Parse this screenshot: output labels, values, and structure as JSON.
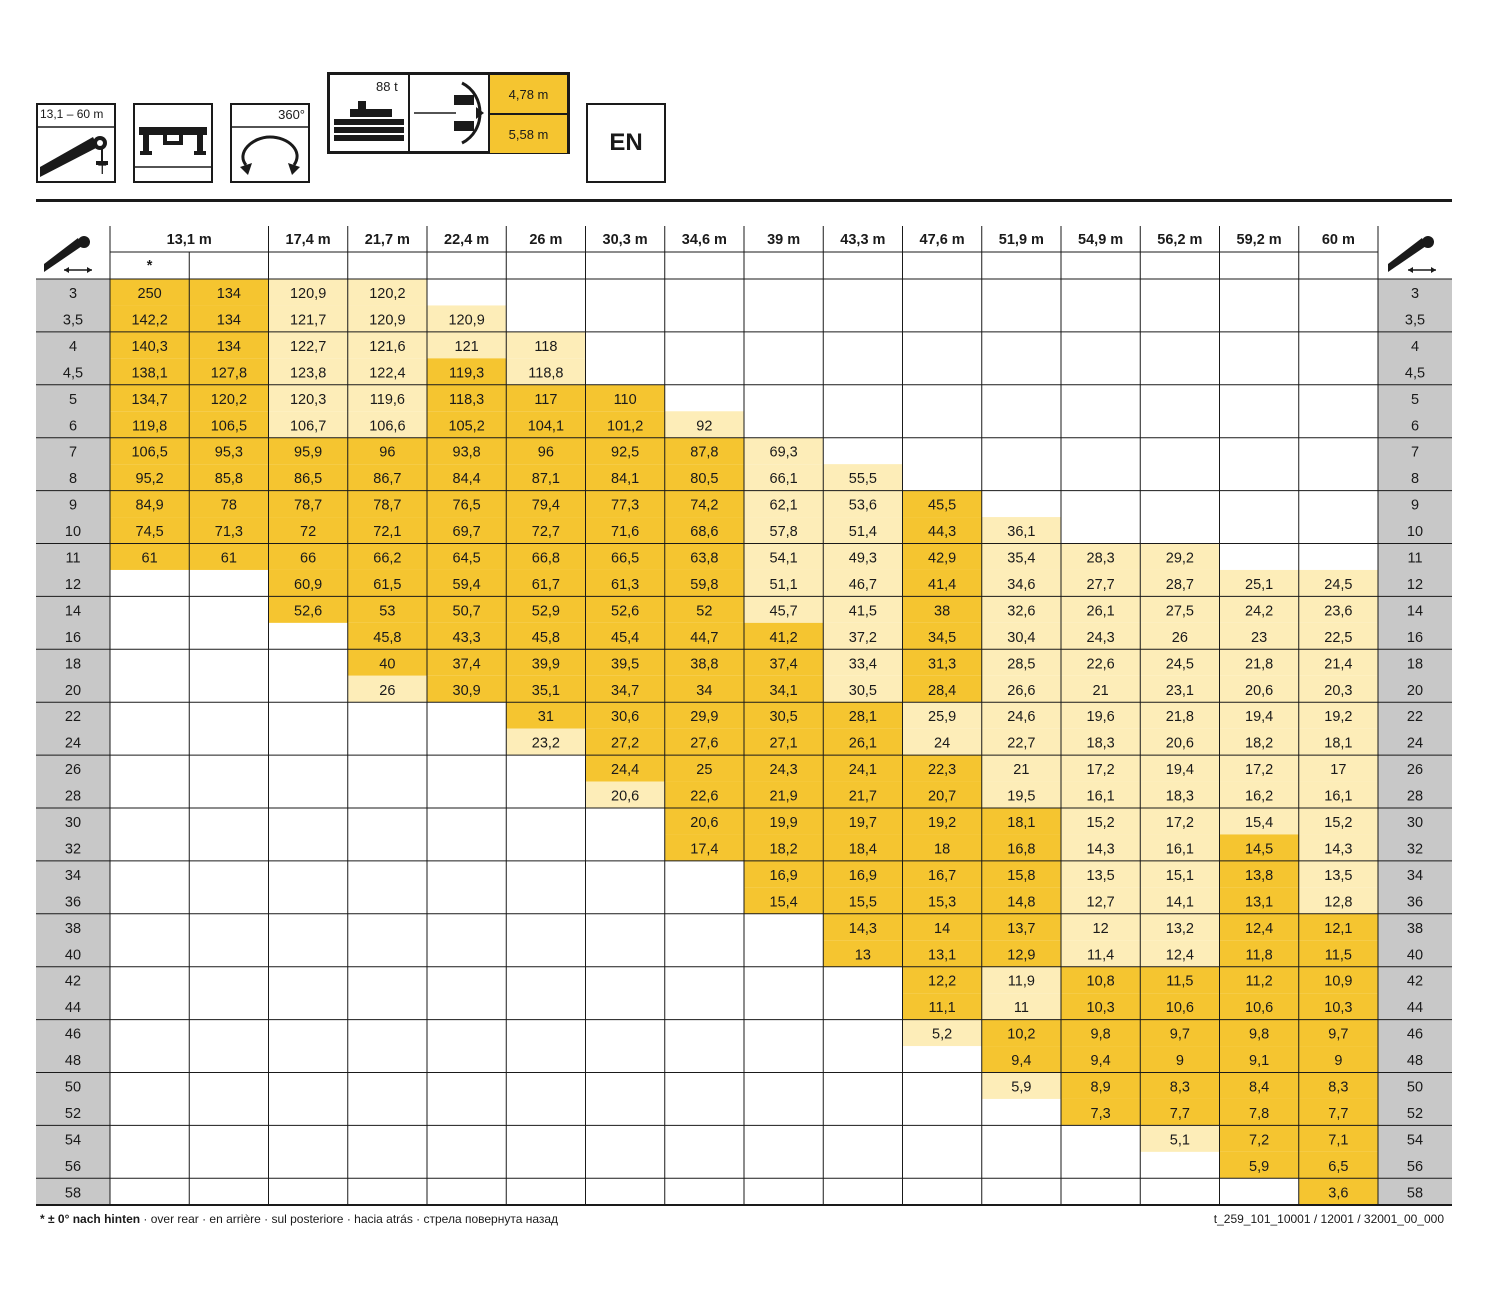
{
  "header": {
    "boom_range": "13,1 – 60 m",
    "boom_symbol": "T",
    "slew_angle": "360°",
    "counterweight": "88 t",
    "outrigger_spans": [
      "4,78 m",
      "5,58 m"
    ],
    "language": "EN"
  },
  "footnote": {
    "bold": "* ± 0° nach hinten",
    "text": " · over rear · en arrière · sul posteriore · hacia atrás · стрела повернута назад"
  },
  "doc_ref": "t_259_101_10001 / 12001 / 32001_00_000",
  "colors": {
    "dark": "#f5c530",
    "light": "#fdedb8",
    "grey": "#c8c8c8",
    "line": "#1a1a1a"
  },
  "chart_data": {
    "type": "table",
    "columns": [
      {
        "head": "13,1 m",
        "sub": "*"
      },
      {
        "head": "",
        "sub": ""
      },
      {
        "head": "17,4 m",
        "sub": ""
      },
      {
        "head": "21,7 m",
        "sub": ""
      },
      {
        "head": "22,4 m",
        "sub": ""
      },
      {
        "head": "26 m",
        "sub": ""
      },
      {
        "head": "30,3 m",
        "sub": ""
      },
      {
        "head": "34,6 m",
        "sub": ""
      },
      {
        "head": "39 m",
        "sub": ""
      },
      {
        "head": "43,3 m",
        "sub": ""
      },
      {
        "head": "47,6 m",
        "sub": ""
      },
      {
        "head": "51,9 m",
        "sub": ""
      },
      {
        "head": "54,9 m",
        "sub": ""
      },
      {
        "head": "56,2 m",
        "sub": ""
      },
      {
        "head": "59,2 m",
        "sub": ""
      },
      {
        "head": "60 m",
        "sub": ""
      }
    ],
    "radii": [
      "3",
      "3,5",
      "4",
      "4,5",
      "5",
      "6",
      "7",
      "8",
      "9",
      "10",
      "11",
      "12",
      "14",
      "16",
      "18",
      "20",
      "22",
      "24",
      "26",
      "28",
      "30",
      "32",
      "34",
      "36",
      "38",
      "40",
      "42",
      "44",
      "46",
      "48",
      "50",
      "52",
      "54",
      "56",
      "58"
    ],
    "values": [
      [
        "250",
        "134",
        "120,9",
        "120,2",
        "",
        "",
        "",
        "",
        "",
        "",
        "",
        "",
        "",
        "",
        "",
        ""
      ],
      [
        "142,2",
        "134",
        "121,7",
        "120,9",
        "120,9",
        "",
        "",
        "",
        "",
        "",
        "",
        "",
        "",
        "",
        "",
        ""
      ],
      [
        "140,3",
        "134",
        "122,7",
        "121,6",
        "121",
        "118",
        "",
        "",
        "",
        "",
        "",
        "",
        "",
        "",
        "",
        ""
      ],
      [
        "138,1",
        "127,8",
        "123,8",
        "122,4",
        "119,3",
        "118,8",
        "",
        "",
        "",
        "",
        "",
        "",
        "",
        "",
        "",
        ""
      ],
      [
        "134,7",
        "120,2",
        "120,3",
        "119,6",
        "118,3",
        "117",
        "110",
        "",
        "",
        "",
        "",
        "",
        "",
        "",
        "",
        ""
      ],
      [
        "119,8",
        "106,5",
        "106,7",
        "106,6",
        "105,2",
        "104,1",
        "101,2",
        "92",
        "",
        "",
        "",
        "",
        "",
        "",
        "",
        ""
      ],
      [
        "106,5",
        "95,3",
        "95,9",
        "96",
        "93,8",
        "96",
        "92,5",
        "87,8",
        "69,3",
        "",
        "",
        "",
        "",
        "",
        "",
        ""
      ],
      [
        "95,2",
        "85,8",
        "86,5",
        "86,7",
        "84,4",
        "87,1",
        "84,1",
        "80,5",
        "66,1",
        "55,5",
        "",
        "",
        "",
        "",
        "",
        ""
      ],
      [
        "84,9",
        "78",
        "78,7",
        "78,7",
        "76,5",
        "79,4",
        "77,3",
        "74,2",
        "62,1",
        "53,6",
        "45,5",
        "",
        "",
        "",
        "",
        ""
      ],
      [
        "74,5",
        "71,3",
        "72",
        "72,1",
        "69,7",
        "72,7",
        "71,6",
        "68,6",
        "57,8",
        "51,4",
        "44,3",
        "36,1",
        "",
        "",
        "",
        ""
      ],
      [
        "61",
        "61",
        "66",
        "66,2",
        "64,5",
        "66,8",
        "66,5",
        "63,8",
        "54,1",
        "49,3",
        "42,9",
        "35,4",
        "28,3",
        "29,2",
        "",
        ""
      ],
      [
        "",
        "",
        "60,9",
        "61,5",
        "59,4",
        "61,7",
        "61,3",
        "59,8",
        "51,1",
        "46,7",
        "41,4",
        "34,6",
        "27,7",
        "28,7",
        "25,1",
        "24,5"
      ],
      [
        "",
        "",
        "52,6",
        "53",
        "50,7",
        "52,9",
        "52,6",
        "52",
        "45,7",
        "41,5",
        "38",
        "32,6",
        "26,1",
        "27,5",
        "24,2",
        "23,6"
      ],
      [
        "",
        "",
        "",
        "45,8",
        "43,3",
        "45,8",
        "45,4",
        "44,7",
        "41,2",
        "37,2",
        "34,5",
        "30,4",
        "24,3",
        "26",
        "23",
        "22,5"
      ],
      [
        "",
        "",
        "",
        "40",
        "37,4",
        "39,9",
        "39,5",
        "38,8",
        "37,4",
        "33,4",
        "31,3",
        "28,5",
        "22,6",
        "24,5",
        "21,8",
        "21,4"
      ],
      [
        "",
        "",
        "",
        "26",
        "30,9",
        "35,1",
        "34,7",
        "34",
        "34,1",
        "30,5",
        "28,4",
        "26,6",
        "21",
        "23,1",
        "20,6",
        "20,3"
      ],
      [
        "",
        "",
        "",
        "",
        "",
        "31",
        "30,6",
        "29,9",
        "30,5",
        "28,1",
        "25,9",
        "24,6",
        "19,6",
        "21,8",
        "19,4",
        "19,2"
      ],
      [
        "",
        "",
        "",
        "",
        "",
        "23,2",
        "27,2",
        "27,6",
        "27,1",
        "26,1",
        "24",
        "22,7",
        "18,3",
        "20,6",
        "18,2",
        "18,1"
      ],
      [
        "",
        "",
        "",
        "",
        "",
        "",
        "24,4",
        "25",
        "24,3",
        "24,1",
        "22,3",
        "21",
        "17,2",
        "19,4",
        "17,2",
        "17"
      ],
      [
        "",
        "",
        "",
        "",
        "",
        "",
        "20,6",
        "22,6",
        "21,9",
        "21,7",
        "20,7",
        "19,5",
        "16,1",
        "18,3",
        "16,2",
        "16,1"
      ],
      [
        "",
        "",
        "",
        "",
        "",
        "",
        "",
        "20,6",
        "19,9",
        "19,7",
        "19,2",
        "18,1",
        "15,2",
        "17,2",
        "15,4",
        "15,2"
      ],
      [
        "",
        "",
        "",
        "",
        "",
        "",
        "",
        "17,4",
        "18,2",
        "18,4",
        "18",
        "16,8",
        "14,3",
        "16,1",
        "14,5",
        "14,3"
      ],
      [
        "",
        "",
        "",
        "",
        "",
        "",
        "",
        "",
        "16,9",
        "16,9",
        "16,7",
        "15,8",
        "13,5",
        "15,1",
        "13,8",
        "13,5"
      ],
      [
        "",
        "",
        "",
        "",
        "",
        "",
        "",
        "",
        "15,4",
        "15,5",
        "15,3",
        "14,8",
        "12,7",
        "14,1",
        "13,1",
        "12,8"
      ],
      [
        "",
        "",
        "",
        "",
        "",
        "",
        "",
        "",
        "",
        "14,3",
        "14",
        "13,7",
        "12",
        "13,2",
        "12,4",
        "12,1"
      ],
      [
        "",
        "",
        "",
        "",
        "",
        "",
        "",
        "",
        "",
        "13",
        "13,1",
        "12,9",
        "11,4",
        "12,4",
        "11,8",
        "11,5"
      ],
      [
        "",
        "",
        "",
        "",
        "",
        "",
        "",
        "",
        "",
        "",
        "12,2",
        "11,9",
        "10,8",
        "11,5",
        "11,2",
        "10,9"
      ],
      [
        "",
        "",
        "",
        "",
        "",
        "",
        "",
        "",
        "",
        "",
        "11,1",
        "11",
        "10,3",
        "10,6",
        "10,6",
        "10,3"
      ],
      [
        "",
        "",
        "",
        "",
        "",
        "",
        "",
        "",
        "",
        "",
        "5,2",
        "10,2",
        "9,8",
        "9,7",
        "9,8",
        "9,7"
      ],
      [
        "",
        "",
        "",
        "",
        "",
        "",
        "",
        "",
        "",
        "",
        "",
        "9,4",
        "9,4",
        "9",
        "9,1",
        "9"
      ],
      [
        "",
        "",
        "",
        "",
        "",
        "",
        "",
        "",
        "",
        "",
        "",
        "5,9",
        "8,9",
        "8,3",
        "8,4",
        "8,3"
      ],
      [
        "",
        "",
        "",
        "",
        "",
        "",
        "",
        "",
        "",
        "",
        "",
        "",
        "7,3",
        "7,7",
        "7,8",
        "7,7"
      ],
      [
        "",
        "",
        "",
        "",
        "",
        "",
        "",
        "",
        "",
        "",
        "",
        "",
        "",
        "5,1",
        "7,2",
        "7,1"
      ],
      [
        "",
        "",
        "",
        "",
        "",
        "",
        "",
        "",
        "",
        "",
        "",
        "",
        "",
        "",
        "5,9",
        "6,5"
      ],
      [
        "",
        "",
        "",
        "",
        "",
        "",
        "",
        "",
        "",
        "",
        "",
        "",
        "",
        "",
        "",
        "3,6"
      ]
    ],
    "shading": [
      "DDLL............",
      "DDLLL...........",
      "DDLLLL..........",
      "DDLLDL..........",
      "DDLLDDD.........",
      "DDLLDDDL........",
      "DDDDDDDDL.......",
      "DDDDDDDDLL......",
      "DDDDDDDDLLD.....",
      "DDDDDDDDLLDL....",
      "DDDDDDDDLLDLLL..",
      "..DDDDDDLLDLLLLL",
      "..DDDDDDLLDLLLLL",
      "...DDDDDDLDLLLLL",
      "...DDDDDDLDLLLLL",
      "...LDDDDDLDLLLLL",
      ".....DDDDDLLLLLL",
      ".....LDDDDLLLLLL",
      "......DDDDDLLLLL",
      "......LDDDDLLLLL",
      ".......DDDDDLLLL",
      ".......DDDDDLLDL",
      "........DDDDLLDL",
      "........DDDDLLDL",
      ".........DDDLLDD",
      ".........DDDLLDD",
      "..........DLDDDD",
      "..........DLDDDD",
      "..........LDDDDD",
      "...........DDDDD",
      "...........LDDDD",
      "............DDDD",
      ".............LDD",
      "..............DD",
      "...............D"
    ]
  }
}
